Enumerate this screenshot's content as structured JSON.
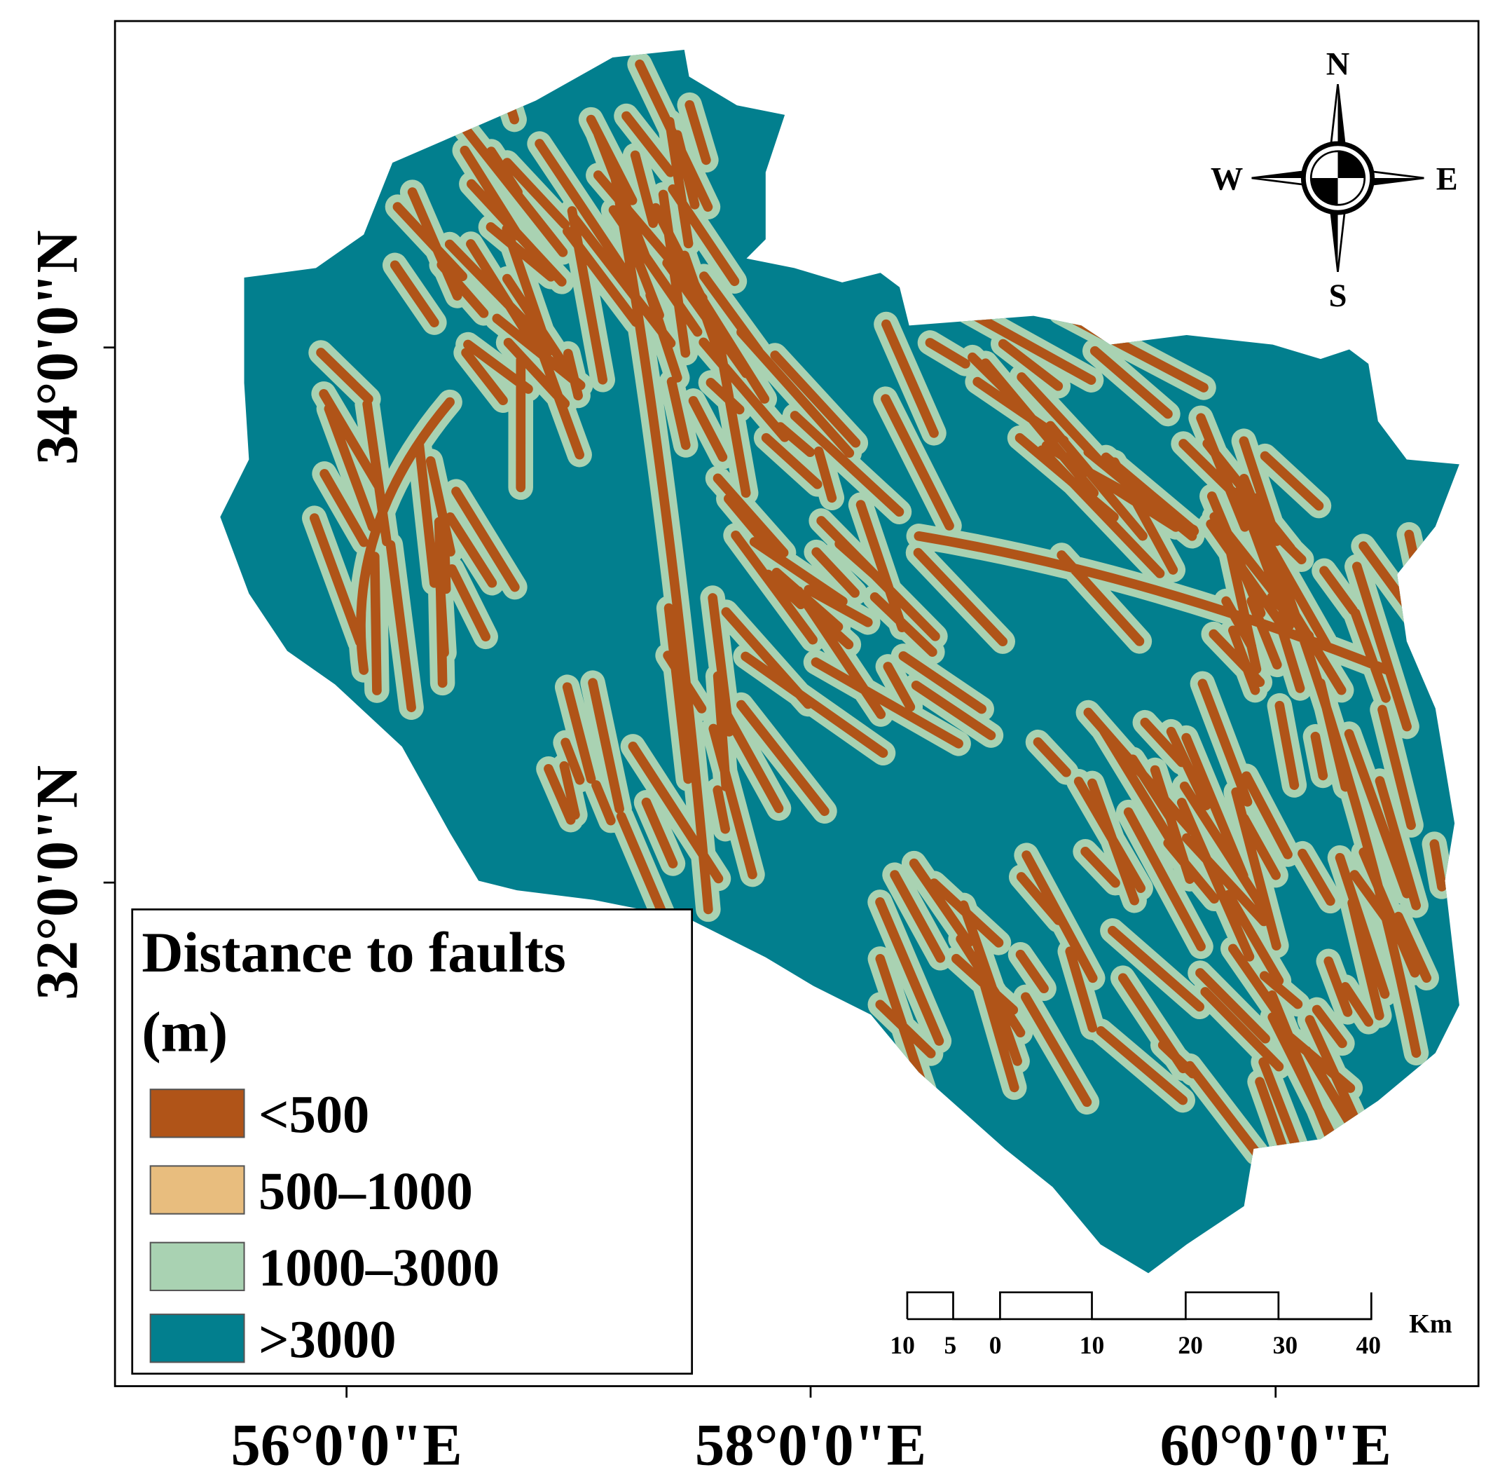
{
  "map": {
    "legend": {
      "title": "Distance to faults",
      "unit": "(m)",
      "items": [
        {
          "label": "<500",
          "color": "#b05418"
        },
        {
          "label": "500–1000",
          "color": "#e8bd7e"
        },
        {
          "label": "1000–3000",
          "color": "#a9d2b2"
        },
        {
          "label": ">3000",
          "color": "#027f8e"
        }
      ]
    },
    "latitude_labels": [
      "34°0'0\"N",
      "32°0'0\"N"
    ],
    "longitude_labels": [
      "56°0'0\"E",
      "58°0'0\"E",
      "60°0'0\"E"
    ],
    "compass": {
      "north": "N",
      "south": "S",
      "east": "E",
      "west": "W"
    },
    "scale_bar": {
      "labels": [
        "10",
        "5",
        "0",
        "10",
        "20",
        "30",
        "40"
      ],
      "unit": "Km"
    }
  }
}
